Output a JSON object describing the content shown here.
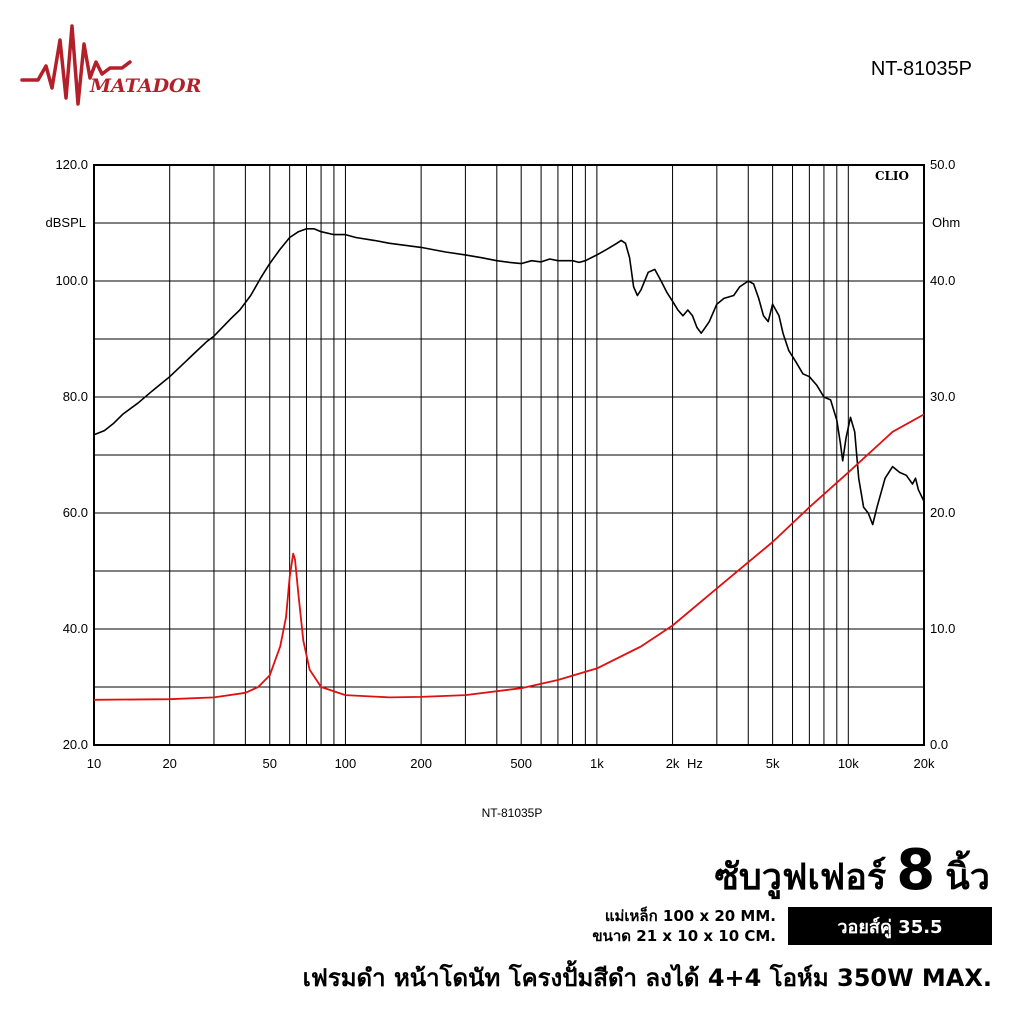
{
  "brand": {
    "name": "MATADOR",
    "color": "#b3202a"
  },
  "model_top": "NT-81035P",
  "chart_caption": "NT-81035P",
  "product": {
    "title_prefix": "ซับวูฟเฟอร์",
    "size": "8",
    "title_suffix": "นิ้ว",
    "magnet": "แม่เหล็ก 100 x 20 MM.",
    "dimensions": "ขนาด 21 x 10 x 10 CM.",
    "voice_coil": "วอยส์คู่ 35.5",
    "features": "เฟรมดำ หน้าโดนัท โครงปั้มสีดำ ลงได้ 4+4 โอห์ม 350W MAX."
  },
  "chart_data": {
    "type": "line",
    "x_scale": "log",
    "xlim": [
      10,
      20000
    ],
    "ylim_left": [
      20,
      120
    ],
    "ylim_right": [
      0,
      50
    ],
    "ylabel_left": "dBSPL",
    "ylabel_right": "Ohm",
    "x_unit_label": "Hz",
    "corner_label": "CLIO",
    "grid": true,
    "x_ticks": [
      {
        "v": 10,
        "label": "10"
      },
      {
        "v": 20,
        "label": "20"
      },
      {
        "v": 50,
        "label": "50"
      },
      {
        "v": 100,
        "label": "100"
      },
      {
        "v": 200,
        "label": "200"
      },
      {
        "v": 500,
        "label": "500"
      },
      {
        "v": 1000,
        "label": "1k"
      },
      {
        "v": 2000,
        "label": "2k"
      },
      {
        "v": 5000,
        "label": "5k"
      },
      {
        "v": 10000,
        "label": "10k"
      },
      {
        "v": 20000,
        "label": "20k"
      }
    ],
    "y_ticks_left": [
      {
        "v": 120,
        "label": "120.0"
      },
      {
        "v": 100,
        "label": "100.0"
      },
      {
        "v": 80,
        "label": "80.0"
      },
      {
        "v": 60,
        "label": "60.0"
      },
      {
        "v": 40,
        "label": "40.0"
      },
      {
        "v": 20,
        "label": "20.0"
      }
    ],
    "y_ticks_right": [
      {
        "v": 50,
        "label": "50.0"
      },
      {
        "v": 40,
        "label": "40.0"
      },
      {
        "v": 30,
        "label": "30.0"
      },
      {
        "v": 20,
        "label": "20.0"
      },
      {
        "v": 10,
        "label": "10.0"
      },
      {
        "v": 0,
        "label": "0.0"
      }
    ],
    "series": [
      {
        "axis": "left",
        "color": "#000000",
        "points": [
          [
            10,
            73.5
          ],
          [
            11,
            74.2
          ],
          [
            12,
            75.5
          ],
          [
            13,
            77
          ],
          [
            15,
            79
          ],
          [
            17,
            81
          ],
          [
            20,
            83.5
          ],
          [
            23,
            86
          ],
          [
            25,
            87.5
          ],
          [
            28,
            89.5
          ],
          [
            30,
            90.5
          ],
          [
            35,
            93.5
          ],
          [
            38,
            95
          ],
          [
            42,
            97.5
          ],
          [
            46,
            100.5
          ],
          [
            50,
            103
          ],
          [
            55,
            105.5
          ],
          [
            60,
            107.5
          ],
          [
            65,
            108.5
          ],
          [
            70,
            109
          ],
          [
            75,
            109
          ],
          [
            80,
            108.5
          ],
          [
            90,
            108
          ],
          [
            100,
            108
          ],
          [
            110,
            107.5
          ],
          [
            130,
            107
          ],
          [
            150,
            106.5
          ],
          [
            200,
            105.8
          ],
          [
            250,
            105
          ],
          [
            300,
            104.5
          ],
          [
            350,
            104
          ],
          [
            400,
            103.5
          ],
          [
            450,
            103.2
          ],
          [
            500,
            103
          ],
          [
            550,
            103.5
          ],
          [
            600,
            103.3
          ],
          [
            650,
            103.8
          ],
          [
            700,
            103.5
          ],
          [
            800,
            103.5
          ],
          [
            850,
            103.2
          ],
          [
            900,
            103.5
          ],
          [
            1000,
            104.5
          ],
          [
            1100,
            105.5
          ],
          [
            1200,
            106.5
          ],
          [
            1250,
            107
          ],
          [
            1300,
            106.5
          ],
          [
            1350,
            104
          ],
          [
            1400,
            99
          ],
          [
            1450,
            97.5
          ],
          [
            1500,
            98.5
          ],
          [
            1600,
            101.5
          ],
          [
            1700,
            102
          ],
          [
            1800,
            100
          ],
          [
            1900,
            98
          ],
          [
            2000,
            96.5
          ],
          [
            2100,
            95
          ],
          [
            2200,
            94
          ],
          [
            2300,
            95
          ],
          [
            2400,
            94
          ],
          [
            2500,
            92
          ],
          [
            2600,
            91
          ],
          [
            2700,
            92
          ],
          [
            2800,
            93
          ],
          [
            3000,
            96
          ],
          [
            3200,
            97
          ],
          [
            3500,
            97.5
          ],
          [
            3700,
            99
          ],
          [
            4000,
            100
          ],
          [
            4200,
            99.5
          ],
          [
            4400,
            97
          ],
          [
            4600,
            94
          ],
          [
            4800,
            93
          ],
          [
            5000,
            96
          ],
          [
            5300,
            94
          ],
          [
            5500,
            91
          ],
          [
            5800,
            88
          ],
          [
            6200,
            86
          ],
          [
            6600,
            84
          ],
          [
            7000,
            83.5
          ],
          [
            7500,
            82
          ],
          [
            8000,
            80
          ],
          [
            8500,
            79.5
          ],
          [
            9000,
            76
          ],
          [
            9300,
            72
          ],
          [
            9500,
            69
          ],
          [
            9800,
            73
          ],
          [
            10200,
            76.5
          ],
          [
            10600,
            74
          ],
          [
            11000,
            66
          ],
          [
            11500,
            61
          ],
          [
            12000,
            60
          ],
          [
            12500,
            58
          ],
          [
            13000,
            61
          ],
          [
            14000,
            66
          ],
          [
            15000,
            68
          ],
          [
            16000,
            67
          ],
          [
            17000,
            66.5
          ],
          [
            18000,
            65
          ],
          [
            18500,
            66
          ],
          [
            19000,
            64
          ],
          [
            20000,
            62
          ]
        ]
      },
      {
        "axis": "right",
        "color": "#e01010",
        "points": [
          [
            10,
            3.9
          ],
          [
            20,
            3.95
          ],
          [
            30,
            4.1
          ],
          [
            40,
            4.5
          ],
          [
            45,
            5.0
          ],
          [
            50,
            6.0
          ],
          [
            55,
            8.5
          ],
          [
            58,
            11
          ],
          [
            60,
            14.5
          ],
          [
            62,
            16.5
          ],
          [
            63,
            16.0
          ],
          [
            65,
            13
          ],
          [
            68,
            9
          ],
          [
            72,
            6.5
          ],
          [
            80,
            5.0
          ],
          [
            100,
            4.3
          ],
          [
            150,
            4.1
          ],
          [
            200,
            4.15
          ],
          [
            300,
            4.3
          ],
          [
            500,
            4.9
          ],
          [
            700,
            5.6
          ],
          [
            1000,
            6.6
          ],
          [
            1500,
            8.5
          ],
          [
            2000,
            10.3
          ],
          [
            3000,
            13.5
          ],
          [
            5000,
            17.5
          ],
          [
            7000,
            20.5
          ],
          [
            10000,
            23.5
          ],
          [
            15000,
            27
          ],
          [
            20000,
            28.5
          ]
        ]
      }
    ]
  }
}
